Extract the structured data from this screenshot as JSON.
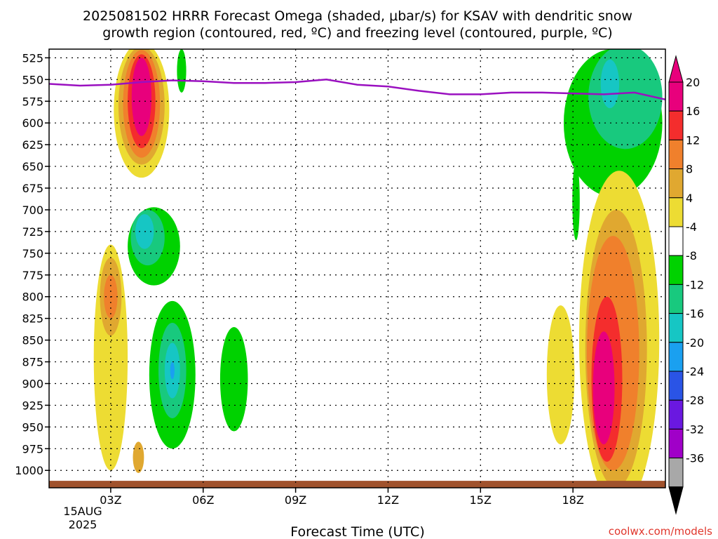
{
  "chart_data": {
    "type": "heatmap",
    "title_lines": [
      "2025081502 HRRR Forecast Omega (shaded, μbar/s) for KSAV with dendritic snow",
      "growth region (contoured, red, ºC) and freezing level (contoured, purple, ºC)"
    ],
    "xlabel": "Forecast Time (UTC)",
    "x_range_hours_utc": [
      1,
      21
    ],
    "x_ticks": [
      {
        "hour": 3,
        "label": "03Z"
      },
      {
        "hour": 6,
        "label": "06Z"
      },
      {
        "hour": 9,
        "label": "09Z"
      },
      {
        "hour": 12,
        "label": "12Z"
      },
      {
        "hour": 15,
        "label": "15Z"
      },
      {
        "hour": 18,
        "label": "18Z"
      }
    ],
    "date_labels": [
      "15AUG",
      "2025"
    ],
    "y_axis": {
      "units": "hPa",
      "inverted": true,
      "range": [
        515,
        1020
      ],
      "ticks": [
        525,
        550,
        575,
        600,
        625,
        650,
        675,
        700,
        725,
        750,
        775,
        800,
        825,
        850,
        875,
        900,
        925,
        950,
        975,
        1000
      ]
    },
    "grid": true,
    "colorbar": {
      "position": "right",
      "levels": [
        {
          "label": "20",
          "color": "#e8007c"
        },
        {
          "label": "16",
          "color": "#f42d2d"
        },
        {
          "label": "12",
          "color": "#f0802c"
        },
        {
          "label": "8",
          "color": "#e0a830"
        },
        {
          "label": "4",
          "color": "#eddc33"
        },
        {
          "label": "-4",
          "color": "#ffffff"
        },
        {
          "label": "-8",
          "color": "#00d200"
        },
        {
          "label": "-12",
          "color": "#18c97e"
        },
        {
          "label": "-16",
          "color": "#16c6c4"
        },
        {
          "label": "-20",
          "color": "#1aa0f0"
        },
        {
          "label": "-24",
          "color": "#2a54e6"
        },
        {
          "label": "-28",
          "color": "#6a18e0"
        },
        {
          "label": "-32",
          "color": "#a000c8"
        },
        {
          "label": "-36",
          "color": "#a8a8a8"
        }
      ],
      "upper_arrow_color": "#e8007c",
      "lower_arrow_color": "#000000"
    },
    "series": [
      {
        "name": "freezing level (0 ºC)",
        "color": "#9a10c0",
        "x": [
          1.0,
          2.0,
          3.0,
          4.0,
          5.0,
          6.0,
          7.0,
          8.0,
          9.0,
          10.0,
          11.0,
          12.0,
          13.0,
          14.0,
          15.0,
          16.0,
          17.0,
          18.0,
          19.0,
          20.0,
          21.0
        ],
        "y": [
          555,
          557,
          556,
          553,
          551,
          552,
          554,
          554,
          553,
          550,
          556,
          558,
          563,
          567,
          567,
          565,
          565,
          566,
          567,
          565,
          573
        ]
      }
    ],
    "omega_cells": [
      {
        "color": "#eddc33",
        "hour": 4.0,
        "p": 585,
        "hw": 0.9,
        "hp": 78
      },
      {
        "color": "#e0a830",
        "hour": 4.0,
        "p": 580,
        "hw": 0.75,
        "hp": 68
      },
      {
        "color": "#f0802c",
        "hour": 4.0,
        "p": 578,
        "hw": 0.6,
        "hp": 62
      },
      {
        "color": "#f42d2d",
        "hour": 4.0,
        "p": 575,
        "hw": 0.45,
        "hp": 54
      },
      {
        "color": "#e8007c",
        "hour": 4.0,
        "p": 570,
        "hw": 0.32,
        "hp": 45
      },
      {
        "color": "#00d200",
        "hour": 5.3,
        "p": 540,
        "hw": 0.15,
        "hp": 25
      },
      {
        "color": "#00d200",
        "hour": 4.4,
        "p": 742,
        "hw": 0.85,
        "hp": 45
      },
      {
        "color": "#18c97e",
        "hour": 4.2,
        "p": 732,
        "hw": 0.55,
        "hp": 32
      },
      {
        "color": "#16c6c4",
        "hour": 4.1,
        "p": 725,
        "hw": 0.3,
        "hp": 20
      },
      {
        "color": "#eddc33",
        "hour": 3.0,
        "p": 870,
        "hw": 0.55,
        "hp": 130
      },
      {
        "color": "#e0a830",
        "hour": 3.0,
        "p": 800,
        "hw": 0.35,
        "hp": 45
      },
      {
        "color": "#f0802c",
        "hour": 3.0,
        "p": 800,
        "hw": 0.22,
        "hp": 25
      },
      {
        "color": "#e0a830",
        "hour": 3.9,
        "p": 985,
        "hw": 0.18,
        "hp": 18
      },
      {
        "color": "#00d200",
        "hour": 5.0,
        "p": 890,
        "hw": 0.75,
        "hp": 85
      },
      {
        "color": "#18c97e",
        "hour": 5.0,
        "p": 885,
        "hw": 0.45,
        "hp": 55
      },
      {
        "color": "#16c6c4",
        "hour": 5.0,
        "p": 885,
        "hw": 0.25,
        "hp": 32
      },
      {
        "color": "#1aa0f0",
        "hour": 5.0,
        "p": 885,
        "hw": 0.07,
        "hp": 10
      },
      {
        "color": "#00d200",
        "hour": 7.0,
        "p": 895,
        "hw": 0.45,
        "hp": 60
      },
      {
        "color": "#00d200",
        "hour": 19.3,
        "p": 600,
        "hw": 1.6,
        "hp": 85
      },
      {
        "color": "#18c97e",
        "hour": 19.7,
        "p": 570,
        "hw": 1.2,
        "hp": 60
      },
      {
        "color": "#16c6c4",
        "hour": 19.2,
        "p": 555,
        "hw": 0.3,
        "hp": 28
      },
      {
        "color": "#00d200",
        "hour": 18.1,
        "p": 690,
        "hw": 0.12,
        "hp": 45
      },
      {
        "color": "#eddc33",
        "hour": 19.5,
        "p": 850,
        "hw": 1.3,
        "hp": 195
      },
      {
        "color": "#eddc33",
        "hour": 17.6,
        "p": 890,
        "hw": 0.45,
        "hp": 80
      },
      {
        "color": "#e0a830",
        "hour": 19.4,
        "p": 860,
        "hw": 1.0,
        "hp": 160
      },
      {
        "color": "#f0802c",
        "hour": 19.3,
        "p": 865,
        "hw": 0.85,
        "hp": 135
      },
      {
        "color": "#f42d2d",
        "hour": 19.1,
        "p": 895,
        "hw": 0.5,
        "hp": 95
      },
      {
        "color": "#e8007c",
        "hour": 19.0,
        "p": 905,
        "hw": 0.35,
        "hp": 65
      }
    ],
    "terrain": {
      "color": "#a0522d",
      "surface_p": 1012
    },
    "annotation": "coolwx.com/models"
  }
}
